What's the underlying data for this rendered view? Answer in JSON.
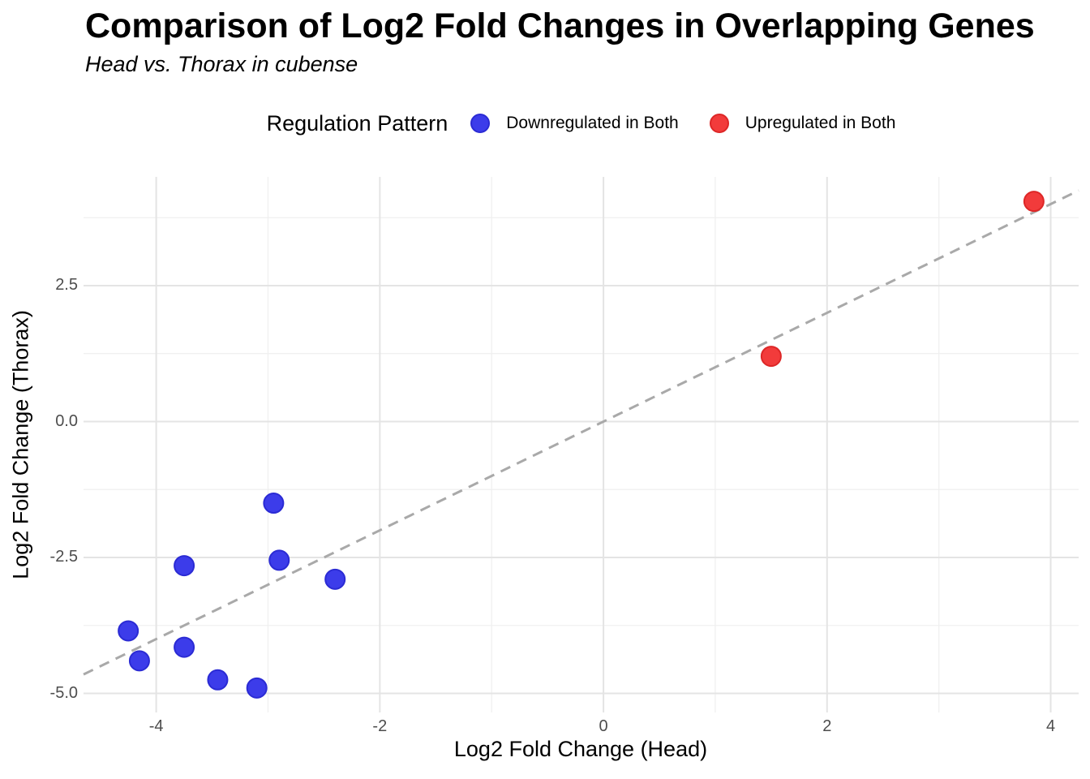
{
  "chart_data": {
    "type": "scatter",
    "title": "Comparison of Log2 Fold Changes in Overlapping Genes",
    "subtitle": "Head vs. Thorax in cubense",
    "xlabel": "Log2 Fold Change (Head)",
    "ylabel": "Log2 Fold Change (Thorax)",
    "xlim": [
      -4.65,
      4.25
    ],
    "ylim": [
      -5.35,
      4.5
    ],
    "grid": true,
    "x_major_ticks": [
      -4,
      -2,
      0,
      2,
      4
    ],
    "x_tick_labels": [
      "-4",
      "-2",
      "0",
      "2",
      "4"
    ],
    "x_minor_ticks": [
      -3,
      -1,
      1,
      3
    ],
    "y_major_ticks": [
      -5.0,
      -2.5,
      0.0,
      2.5
    ],
    "y_tick_labels": [
      "-5.0",
      "-2.5",
      "0.0",
      "2.5"
    ],
    "y_minor_ticks": [
      -3.75,
      -1.25,
      1.25,
      3.75
    ],
    "reference_line": {
      "description": "identity line y = x",
      "style": "dashed",
      "color": "#a9a9a9"
    },
    "legend": {
      "title": "Regulation Pattern",
      "position": "top-center"
    },
    "series": [
      {
        "name": "Downregulated in Both",
        "color": "#3c3cea",
        "stroke": "#2b2bd4",
        "points": [
          [
            -2.95,
            -1.5
          ],
          [
            -2.9,
            -2.55
          ],
          [
            -2.4,
            -2.9
          ],
          [
            -3.75,
            -2.65
          ],
          [
            -4.25,
            -3.85
          ],
          [
            -4.15,
            -4.4
          ],
          [
            -3.75,
            -4.15
          ],
          [
            -3.45,
            -4.75
          ],
          [
            -3.1,
            -4.9
          ]
        ]
      },
      {
        "name": "Upregulated in Both",
        "color": "#f23b3b",
        "stroke": "#dd2727",
        "points": [
          [
            1.5,
            1.2
          ],
          [
            3.85,
            4.05
          ]
        ]
      }
    ],
    "colors": {
      "grid_major": "#e4e4e4",
      "grid_minor": "#efefef",
      "tick_text": "#4d4d4d",
      "background": "#ffffff"
    }
  }
}
